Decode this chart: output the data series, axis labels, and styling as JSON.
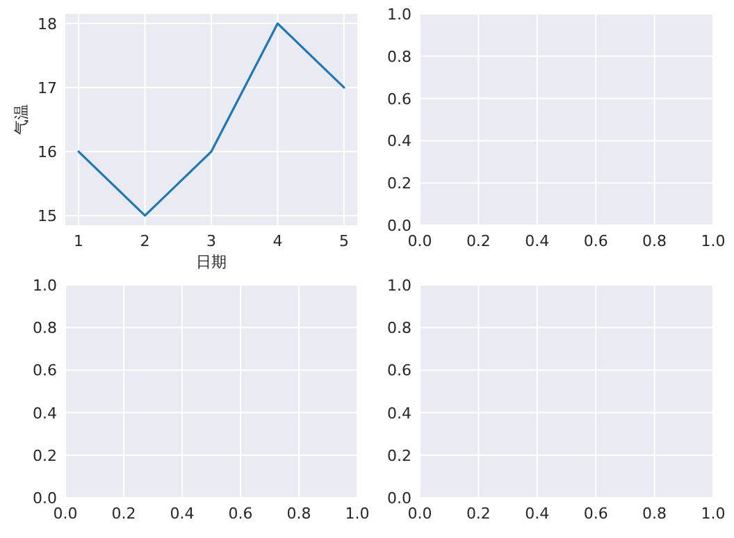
{
  "chart_data": [
    {
      "type": "line",
      "xlabel": "日期",
      "ylabel": "气温",
      "x": [
        1,
        2,
        3,
        4,
        5
      ],
      "series": [
        {
          "color": "#1f77b4",
          "values": [
            16,
            15,
            16,
            18,
            17
          ]
        }
      ],
      "xlim": [
        0.8,
        5.2
      ],
      "ylim": [
        14.85,
        18.15
      ],
      "xticks": [
        1,
        2,
        3,
        4,
        5
      ],
      "yticks": [
        15,
        16,
        17,
        18
      ],
      "grid": true
    },
    {
      "type": "line",
      "xlim": [
        0,
        1
      ],
      "ylim": [
        0,
        1
      ],
      "xticks": [
        {
          "value": 0,
          "label": "0.0"
        },
        {
          "value": 0.2,
          "label": "0.2"
        },
        {
          "value": 0.4,
          "label": "0.4"
        },
        {
          "value": 0.6,
          "label": "0.6"
        },
        {
          "value": 0.8,
          "label": "0.8"
        },
        {
          "value": 1,
          "label": "1.0"
        }
      ],
      "yticks": [
        {
          "value": 0,
          "label": "0.0"
        },
        {
          "value": 0.2,
          "label": "0.2"
        },
        {
          "value": 0.4,
          "label": "0.4"
        },
        {
          "value": 0.6,
          "label": "0.6"
        },
        {
          "value": 0.8,
          "label": "0.8"
        },
        {
          "value": 1,
          "label": "1.0"
        }
      ],
      "grid": true
    },
    {
      "type": "line",
      "xlim": [
        0,
        1
      ],
      "ylim": [
        0,
        1
      ],
      "xticks": [
        {
          "value": 0,
          "label": "0.0"
        },
        {
          "value": 0.2,
          "label": "0.2"
        },
        {
          "value": 0.4,
          "label": "0.4"
        },
        {
          "value": 0.6,
          "label": "0.6"
        },
        {
          "value": 0.8,
          "label": "0.8"
        },
        {
          "value": 1,
          "label": "1.0"
        }
      ],
      "yticks": [
        {
          "value": 0,
          "label": "0.0"
        },
        {
          "value": 0.2,
          "label": "0.2"
        },
        {
          "value": 0.4,
          "label": "0.4"
        },
        {
          "value": 0.6,
          "label": "0.6"
        },
        {
          "value": 0.8,
          "label": "0.8"
        },
        {
          "value": 1,
          "label": "1.0"
        }
      ],
      "grid": true
    },
    {
      "type": "line",
      "xlim": [
        0,
        1
      ],
      "ylim": [
        0,
        1
      ],
      "xticks": [
        {
          "value": 0,
          "label": "0.0"
        },
        {
          "value": 0.2,
          "label": "0.2"
        },
        {
          "value": 0.4,
          "label": "0.4"
        },
        {
          "value": 0.6,
          "label": "0.6"
        },
        {
          "value": 0.8,
          "label": "0.8"
        },
        {
          "value": 1,
          "label": "1.0"
        }
      ],
      "yticks": [
        {
          "value": 0,
          "label": "0.0"
        },
        {
          "value": 0.2,
          "label": "0.2"
        },
        {
          "value": 0.4,
          "label": "0.4"
        },
        {
          "value": 0.6,
          "label": "0.6"
        },
        {
          "value": 0.8,
          "label": "0.8"
        },
        {
          "value": 1,
          "label": "1.0"
        }
      ],
      "grid": true
    }
  ]
}
